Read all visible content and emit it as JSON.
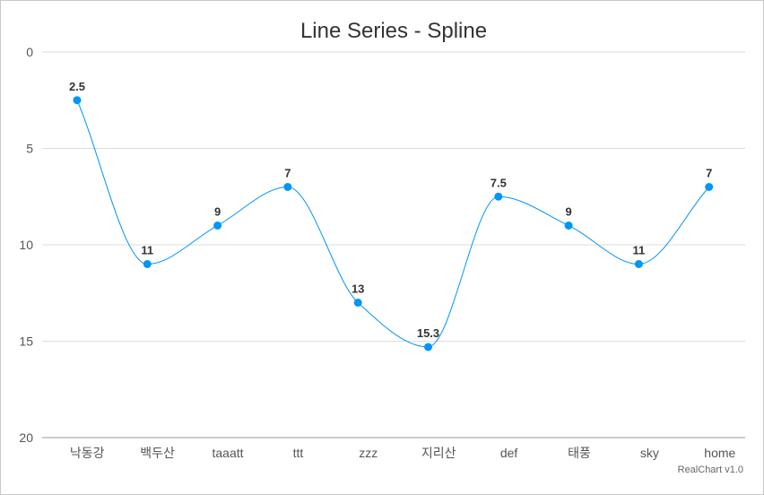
{
  "chart_data": {
    "type": "line",
    "title": "Line Series - Spline",
    "credit": "RealChart v1.0",
    "categories": [
      "낙동강",
      "백두산",
      "taaatt",
      "ttt",
      "zzz",
      "지리산",
      "def",
      "태풍",
      "sky",
      "home"
    ],
    "series": [
      {
        "values": [
          2.5,
          11,
          9,
          7,
          13,
          15.3,
          7.5,
          9,
          11,
          7
        ]
      }
    ],
    "ylim": [
      0,
      20
    ],
    "y_reversed": true,
    "y_ticks": [
      0,
      5,
      10,
      15,
      20
    ],
    "grid": true,
    "curve": "spline",
    "colors": {
      "series": "#0095f6",
      "grid": "#dddddd",
      "axis": "#bbbbbb"
    }
  }
}
